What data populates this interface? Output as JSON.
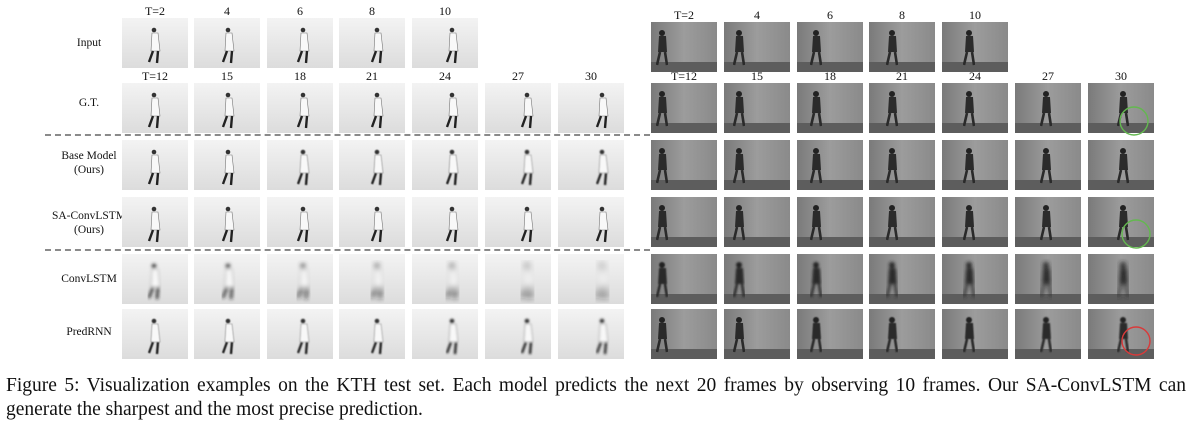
{
  "rows": [
    {
      "id": "input",
      "label_lines": [
        "Input"
      ],
      "left_times": [
        "T=2",
        "4",
        "6",
        "8",
        "10"
      ],
      "right_times": [
        "T=2",
        "4",
        "6",
        "8",
        "10"
      ]
    },
    {
      "id": "gt",
      "label_lines": [
        "G.T."
      ],
      "left_times": [
        "T=12",
        "15",
        "18",
        "21",
        "24",
        "27",
        "30"
      ],
      "right_times": [
        "T=12",
        "15",
        "18",
        "21",
        "24",
        "27",
        "30"
      ]
    },
    {
      "id": "base",
      "label_lines": [
        "Base Model",
        "(Ours)"
      ]
    },
    {
      "id": "saconvlstm",
      "label_lines": [
        "SA-ConvLSTM",
        "(Ours)"
      ]
    },
    {
      "id": "convlstm",
      "label_lines": [
        "ConvLSTM"
      ]
    },
    {
      "id": "predrnn",
      "label_lines": [
        "PredRNN"
      ]
    }
  ],
  "highlight_colors": {
    "good": "#63b84f",
    "bad": "#d93a3a"
  },
  "caption": "Figure 5: Visualization examples on the KTH test set. Each model predicts the next 20 frames by observing 10 frames. Our SA-ConvLSTM can generate the sharpest and the most precise prediction."
}
